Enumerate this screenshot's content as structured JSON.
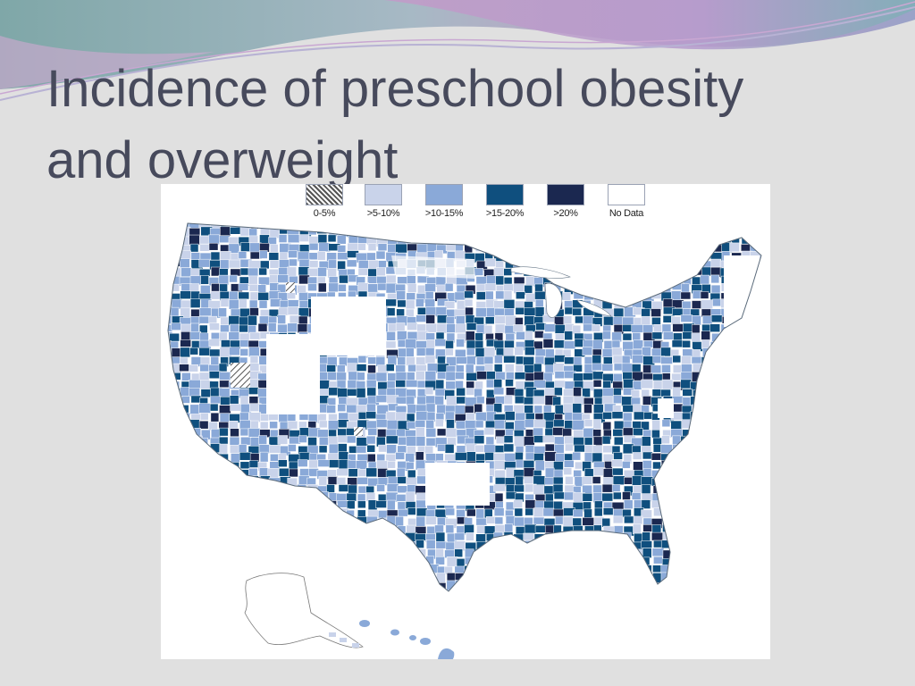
{
  "slide": {
    "title": "Incidence of preschool obesity\nand overweight"
  },
  "legend": [
    {
      "label": "0-5%",
      "color": "#ffffff",
      "pattern": "hatched"
    },
    {
      "label": ">5-10%",
      "color": "#c9d3ea"
    },
    {
      "label": ">10-15%",
      "color": "#8aa9d8"
    },
    {
      "label": ">15-20%",
      "color": "#0f4f7e"
    },
    {
      "label": ">20%",
      "color": "#1b2850"
    },
    {
      "label": "No Data",
      "color": "#ffffff"
    }
  ],
  "colors": {
    "background": "#e0e0e0",
    "title": "#474a5c",
    "map_outline": "#5a6a7a",
    "water_blank": "#ffffff"
  }
}
